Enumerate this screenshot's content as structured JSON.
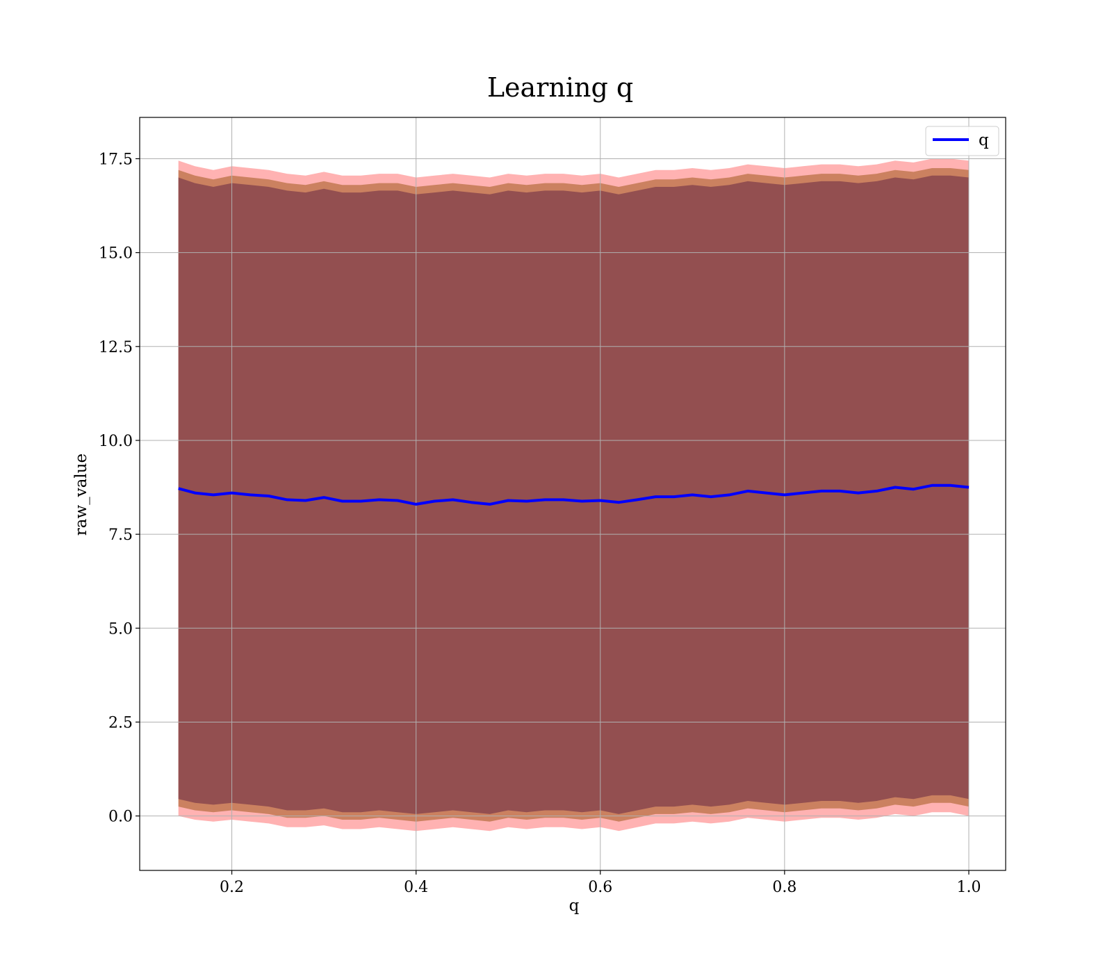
{
  "chart_data": {
    "type": "line",
    "title": "Learning q",
    "xlabel": "q",
    "ylabel": "raw_value",
    "xlim": [
      0.1,
      1.04
    ],
    "ylim": [
      -1.45,
      18.6
    ],
    "x_ticks": [
      0.2,
      0.4,
      0.6,
      0.8,
      1.0
    ],
    "x_tick_labels": [
      "0.2",
      "0.4",
      "0.6",
      "0.8",
      "1.0"
    ],
    "y_ticks": [
      0.0,
      2.5,
      5.0,
      7.5,
      10.0,
      12.5,
      15.0,
      17.5
    ],
    "y_tick_labels": [
      "0.0",
      "2.5",
      "5.0",
      "7.5",
      "10.0",
      "12.5",
      "15.0",
      "17.5"
    ],
    "grid": true,
    "legend_position": "top-right",
    "x": [
      0.142,
      0.16,
      0.18,
      0.2,
      0.22,
      0.24,
      0.26,
      0.28,
      0.3,
      0.32,
      0.34,
      0.36,
      0.38,
      0.4,
      0.42,
      0.44,
      0.46,
      0.48,
      0.5,
      0.52,
      0.54,
      0.56,
      0.58,
      0.6,
      0.62,
      0.64,
      0.66,
      0.68,
      0.7,
      0.72,
      0.74,
      0.76,
      0.78,
      0.8,
      0.82,
      0.84,
      0.86,
      0.88,
      0.9,
      0.92,
      0.94,
      0.96,
      0.98,
      1.0
    ],
    "series": [
      {
        "name": "q",
        "color": "#0000ff",
        "values": [
          8.72,
          8.6,
          8.55,
          8.6,
          8.55,
          8.52,
          8.42,
          8.4,
          8.48,
          8.38,
          8.38,
          8.42,
          8.4,
          8.3,
          8.38,
          8.42,
          8.35,
          8.3,
          8.4,
          8.38,
          8.42,
          8.42,
          8.38,
          8.4,
          8.35,
          8.42,
          8.5,
          8.5,
          8.55,
          8.5,
          8.55,
          8.65,
          8.6,
          8.55,
          8.6,
          8.65,
          8.65,
          8.6,
          8.65,
          8.75,
          8.7,
          8.8,
          8.8,
          8.75
        ]
      }
    ],
    "bands": [
      {
        "color": "#ff0000",
        "opacity": 0.3,
        "upper": [
          17.45,
          17.3,
          17.2,
          17.3,
          17.25,
          17.2,
          17.1,
          17.05,
          17.15,
          17.05,
          17.05,
          17.1,
          17.1,
          17.0,
          17.05,
          17.1,
          17.05,
          17.0,
          17.1,
          17.05,
          17.1,
          17.1,
          17.05,
          17.1,
          17.0,
          17.1,
          17.2,
          17.2,
          17.25,
          17.2,
          17.25,
          17.35,
          17.3,
          17.25,
          17.3,
          17.35,
          17.35,
          17.3,
          17.35,
          17.45,
          17.4,
          17.5,
          17.5,
          17.45
        ],
        "lower": [
          0.0,
          -0.1,
          -0.15,
          -0.1,
          -0.15,
          -0.2,
          -0.3,
          -0.3,
          -0.25,
          -0.35,
          -0.35,
          -0.3,
          -0.35,
          -0.4,
          -0.35,
          -0.3,
          -0.35,
          -0.4,
          -0.3,
          -0.35,
          -0.3,
          -0.3,
          -0.35,
          -0.3,
          -0.4,
          -0.3,
          -0.2,
          -0.2,
          -0.15,
          -0.2,
          -0.15,
          -0.05,
          -0.1,
          -0.15,
          -0.1,
          -0.05,
          -0.05,
          -0.1,
          -0.05,
          0.05,
          0.0,
          0.1,
          0.1,
          0.0
        ]
      },
      {
        "color": "#a05a1e",
        "opacity": 0.55,
        "upper": [
          17.2,
          17.05,
          16.95,
          17.05,
          17.0,
          16.95,
          16.85,
          16.8,
          16.9,
          16.8,
          16.8,
          16.85,
          16.85,
          16.75,
          16.8,
          16.85,
          16.8,
          16.75,
          16.85,
          16.8,
          16.85,
          16.85,
          16.8,
          16.85,
          16.75,
          16.85,
          16.95,
          16.95,
          17.0,
          16.95,
          17.0,
          17.1,
          17.05,
          17.0,
          17.05,
          17.1,
          17.1,
          17.05,
          17.1,
          17.2,
          17.15,
          17.25,
          17.25,
          17.2
        ],
        "lower": [
          0.25,
          0.15,
          0.1,
          0.15,
          0.1,
          0.05,
          -0.05,
          -0.05,
          0.0,
          -0.1,
          -0.1,
          -0.05,
          -0.1,
          -0.15,
          -0.1,
          -0.05,
          -0.1,
          -0.15,
          -0.05,
          -0.1,
          -0.05,
          -0.05,
          -0.1,
          -0.05,
          -0.15,
          -0.05,
          0.05,
          0.05,
          0.1,
          0.05,
          0.1,
          0.2,
          0.15,
          0.1,
          0.15,
          0.2,
          0.2,
          0.15,
          0.2,
          0.3,
          0.25,
          0.35,
          0.35,
          0.25
        ]
      },
      {
        "color": "#7a3a4a",
        "opacity": 0.7,
        "upper": [
          17.0,
          16.85,
          16.75,
          16.85,
          16.8,
          16.75,
          16.65,
          16.6,
          16.7,
          16.6,
          16.6,
          16.65,
          16.65,
          16.55,
          16.6,
          16.65,
          16.6,
          16.55,
          16.65,
          16.6,
          16.65,
          16.65,
          16.6,
          16.65,
          16.55,
          16.65,
          16.75,
          16.75,
          16.8,
          16.75,
          16.8,
          16.9,
          16.85,
          16.8,
          16.85,
          16.9,
          16.9,
          16.85,
          16.9,
          17.0,
          16.95,
          17.05,
          17.05,
          17.0
        ],
        "lower": [
          0.45,
          0.35,
          0.3,
          0.35,
          0.3,
          0.25,
          0.15,
          0.15,
          0.2,
          0.1,
          0.1,
          0.15,
          0.1,
          0.05,
          0.1,
          0.15,
          0.1,
          0.05,
          0.15,
          0.1,
          0.15,
          0.15,
          0.1,
          0.15,
          0.05,
          0.15,
          0.25,
          0.25,
          0.3,
          0.25,
          0.3,
          0.4,
          0.35,
          0.3,
          0.35,
          0.4,
          0.4,
          0.35,
          0.4,
          0.5,
          0.45,
          0.55,
          0.55,
          0.45
        ]
      }
    ]
  }
}
